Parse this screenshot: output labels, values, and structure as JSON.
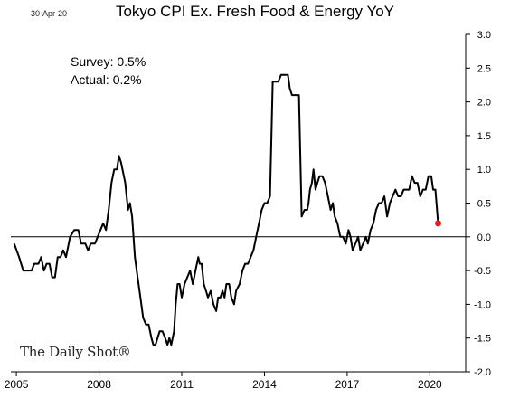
{
  "header": {
    "date": "30-Apr-20",
    "logo": "The Daily Shot®"
  },
  "annotations": {
    "survey": "Survey: 0.5%",
    "actual": "Actual:  0.2%"
  },
  "colors": {
    "line": "#000000",
    "marker": "#e0201b"
  },
  "chart_data": {
    "type": "line",
    "title": "Tokyo  CPI Ex. Fresh Food & Energy YoY",
    "xlabel": "",
    "ylabel": "",
    "xlim": [
      2004.8,
      2021.3
    ],
    "ylim": [
      -2.0,
      3.0
    ],
    "x_ticks": [
      2005,
      2008,
      2011,
      2014,
      2017,
      2020
    ],
    "y_ticks": [
      3.0,
      2.5,
      2.0,
      1.5,
      1.0,
      0.5,
      0.0,
      -0.5,
      -1.0,
      -1.5,
      -2.0
    ],
    "y_tick_labels": [
      "3.0",
      "2.5",
      "2.0",
      "1.5",
      "1.0",
      "0.5",
      "0.0",
      "-0.5",
      "-1.0",
      "-1.5",
      "-2.0"
    ],
    "y_axis_position": "right",
    "zero_line": true,
    "grid": false,
    "series": [
      {
        "points": [
          [
            2004.92,
            -0.1
          ],
          [
            2005.1,
            -0.3
          ],
          [
            2005.25,
            -0.5
          ],
          [
            2005.55,
            -0.5
          ],
          [
            2005.65,
            -0.4
          ],
          [
            2005.8,
            -0.4
          ],
          [
            2005.9,
            -0.3
          ],
          [
            2006.0,
            -0.5
          ],
          [
            2006.1,
            -0.4
          ],
          [
            2006.2,
            -0.4
          ],
          [
            2006.3,
            -0.6
          ],
          [
            2006.4,
            -0.6
          ],
          [
            2006.5,
            -0.3
          ],
          [
            2006.6,
            -0.3
          ],
          [
            2006.7,
            -0.2
          ],
          [
            2006.8,
            -0.3
          ],
          [
            2006.95,
            0.0
          ],
          [
            2007.1,
            0.1
          ],
          [
            2007.25,
            0.1
          ],
          [
            2007.35,
            -0.1
          ],
          [
            2007.5,
            -0.1
          ],
          [
            2007.6,
            -0.2
          ],
          [
            2007.7,
            -0.1
          ],
          [
            2007.85,
            -0.1
          ],
          [
            2007.95,
            0.0
          ],
          [
            2008.05,
            0.1
          ],
          [
            2008.15,
            0.2
          ],
          [
            2008.25,
            0.1
          ],
          [
            2008.35,
            0.4
          ],
          [
            2008.45,
            0.8
          ],
          [
            2008.55,
            1.0
          ],
          [
            2008.65,
            1.0
          ],
          [
            2008.72,
            1.2
          ],
          [
            2008.8,
            1.1
          ],
          [
            2008.95,
            0.8
          ],
          [
            2009.05,
            0.4
          ],
          [
            2009.12,
            0.5
          ],
          [
            2009.2,
            0.3
          ],
          [
            2009.3,
            -0.3
          ],
          [
            2009.4,
            -0.6
          ],
          [
            2009.5,
            -0.9
          ],
          [
            2009.6,
            -1.2
          ],
          [
            2009.7,
            -1.3
          ],
          [
            2009.8,
            -1.3
          ],
          [
            2009.9,
            -1.5
          ],
          [
            2009.97,
            -1.6
          ],
          [
            2010.05,
            -1.6
          ],
          [
            2010.12,
            -1.5
          ],
          [
            2010.2,
            -1.4
          ],
          [
            2010.3,
            -1.4
          ],
          [
            2010.4,
            -1.5
          ],
          [
            2010.48,
            -1.6
          ],
          [
            2010.55,
            -1.5
          ],
          [
            2010.62,
            -1.6
          ],
          [
            2010.72,
            -1.4
          ],
          [
            2010.78,
            -1.0
          ],
          [
            2010.85,
            -0.7
          ],
          [
            2010.92,
            -0.7
          ],
          [
            2011.0,
            -0.9
          ],
          [
            2011.1,
            -0.7
          ],
          [
            2011.2,
            -0.6
          ],
          [
            2011.3,
            -0.5
          ],
          [
            2011.4,
            -0.7
          ],
          [
            2011.5,
            -0.5
          ],
          [
            2011.6,
            -0.3
          ],
          [
            2011.65,
            -0.4
          ],
          [
            2011.72,
            -0.4
          ],
          [
            2011.8,
            -0.7
          ],
          [
            2011.88,
            -0.8
          ],
          [
            2011.95,
            -0.9
          ],
          [
            2012.05,
            -0.8
          ],
          [
            2012.15,
            -1.0
          ],
          [
            2012.25,
            -1.1
          ],
          [
            2012.32,
            -0.9
          ],
          [
            2012.4,
            -0.9
          ],
          [
            2012.48,
            -0.8
          ],
          [
            2012.55,
            -0.9
          ],
          [
            2012.62,
            -0.7
          ],
          [
            2012.72,
            -0.7
          ],
          [
            2012.8,
            -0.9
          ],
          [
            2012.9,
            -1.0
          ],
          [
            2012.97,
            -0.8
          ],
          [
            2013.1,
            -0.7
          ],
          [
            2013.2,
            -0.5
          ],
          [
            2013.3,
            -0.4
          ],
          [
            2013.4,
            -0.4
          ],
          [
            2013.5,
            -0.3
          ],
          [
            2013.6,
            -0.2
          ],
          [
            2013.7,
            0.0
          ],
          [
            2013.8,
            0.2
          ],
          [
            2013.9,
            0.4
          ],
          [
            2014.0,
            0.5
          ],
          [
            2014.1,
            0.5
          ],
          [
            2014.2,
            0.6
          ],
          [
            2014.3,
            2.3
          ],
          [
            2014.4,
            2.3
          ],
          [
            2014.5,
            2.3
          ],
          [
            2014.6,
            2.4
          ],
          [
            2014.75,
            2.4
          ],
          [
            2014.85,
            2.4
          ],
          [
            2014.92,
            2.2
          ],
          [
            2015.0,
            2.1
          ],
          [
            2015.1,
            2.1
          ],
          [
            2015.25,
            2.1
          ],
          [
            2015.35,
            0.3
          ],
          [
            2015.45,
            0.4
          ],
          [
            2015.55,
            0.4
          ],
          [
            2015.6,
            0.5
          ],
          [
            2015.65,
            0.7
          ],
          [
            2015.72,
            0.8
          ],
          [
            2015.78,
            1.0
          ],
          [
            2015.85,
            0.7
          ],
          [
            2015.92,
            0.8
          ],
          [
            2016.0,
            0.9
          ],
          [
            2016.1,
            0.9
          ],
          [
            2016.2,
            0.8
          ],
          [
            2016.3,
            0.6
          ],
          [
            2016.4,
            0.4
          ],
          [
            2016.48,
            0.5
          ],
          [
            2016.55,
            0.3
          ],
          [
            2016.65,
            0.2
          ],
          [
            2016.75,
            0.0
          ],
          [
            2016.85,
            0.0
          ],
          [
            2016.95,
            -0.1
          ],
          [
            2017.05,
            0.1
          ],
          [
            2017.12,
            0.0
          ],
          [
            2017.2,
            -0.2
          ],
          [
            2017.3,
            -0.1
          ],
          [
            2017.4,
            0.0
          ],
          [
            2017.48,
            -0.2
          ],
          [
            2017.58,
            -0.1
          ],
          [
            2017.68,
            0.0
          ],
          [
            2017.75,
            -0.1
          ],
          [
            2017.85,
            0.1
          ],
          [
            2017.95,
            0.2
          ],
          [
            2018.05,
            0.4
          ],
          [
            2018.15,
            0.5
          ],
          [
            2018.25,
            0.5
          ],
          [
            2018.35,
            0.6
          ],
          [
            2018.45,
            0.3
          ],
          [
            2018.55,
            0.5
          ],
          [
            2018.65,
            0.6
          ],
          [
            2018.75,
            0.7
          ],
          [
            2018.85,
            0.6
          ],
          [
            2018.95,
            0.6
          ],
          [
            2019.05,
            0.7
          ],
          [
            2019.15,
            0.7
          ],
          [
            2019.25,
            0.7
          ],
          [
            2019.35,
            0.9
          ],
          [
            2019.45,
            0.8
          ],
          [
            2019.55,
            0.8
          ],
          [
            2019.65,
            0.6
          ],
          [
            2019.75,
            0.7
          ],
          [
            2019.85,
            0.7
          ],
          [
            2019.95,
            0.9
          ],
          [
            2020.05,
            0.9
          ],
          [
            2020.12,
            0.7
          ],
          [
            2020.2,
            0.7
          ],
          [
            2020.3,
            0.2
          ]
        ]
      }
    ],
    "highlight_point": [
      2020.3,
      0.2
    ]
  }
}
